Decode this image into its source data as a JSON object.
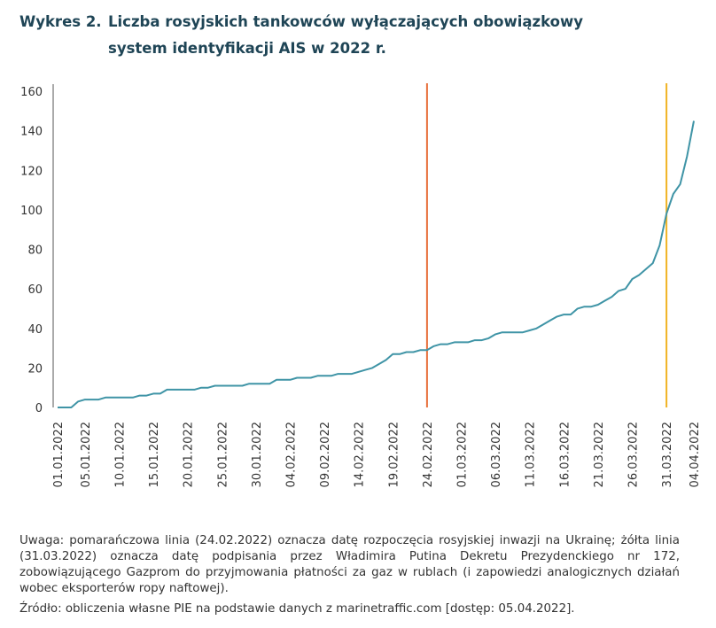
{
  "chart_data": {
    "type": "line",
    "label": "Wykres 2.",
    "title": "Liczba rosyjskich tankowców wyłączających obowiązkowy system identyfikacji AIS w 2022 r.",
    "categories": [
      "01.01.2022",
      null,
      null,
      null,
      "05.01.2022",
      null,
      null,
      null,
      null,
      "10.01.2022",
      null,
      null,
      null,
      null,
      "15.01.2022",
      null,
      null,
      null,
      null,
      "20.01.2022",
      null,
      null,
      null,
      null,
      "25.01.2022",
      null,
      null,
      null,
      null,
      "30.01.2022",
      null,
      null,
      null,
      null,
      "04.02.2022",
      null,
      null,
      null,
      null,
      "09.02.2022",
      null,
      null,
      null,
      null,
      "14.02.2022",
      null,
      null,
      null,
      null,
      "19.02.2022",
      null,
      null,
      null,
      null,
      "24.02.2022",
      null,
      null,
      null,
      null,
      "01.03.2022",
      null,
      null,
      null,
      null,
      "06.03.2022",
      null,
      null,
      null,
      null,
      "11.03.2022",
      null,
      null,
      null,
      null,
      "16.03.2022",
      null,
      null,
      null,
      null,
      "21.03.2022",
      null,
      null,
      null,
      null,
      "26.03.2022",
      null,
      null,
      null,
      null,
      "31.03.2022",
      null,
      null,
      null,
      "04.04.2022"
    ],
    "series": [
      {
        "color": "#3f94a6",
        "values": [
          0,
          0,
          0,
          3,
          4,
          4,
          4,
          5,
          5,
          5,
          5,
          5,
          6,
          6,
          7,
          7,
          9,
          9,
          9,
          9,
          9,
          10,
          10,
          11,
          11,
          11,
          11,
          11,
          12,
          12,
          12,
          12,
          14,
          14,
          14,
          15,
          15,
          15,
          16,
          16,
          16,
          17,
          17,
          17,
          18,
          19,
          20,
          22,
          24,
          27,
          27,
          28,
          28,
          29,
          29,
          31,
          32,
          32,
          33,
          33,
          33,
          34,
          34,
          35,
          37,
          38,
          38,
          38,
          38,
          39,
          40,
          42,
          44,
          46,
          47,
          47,
          50,
          51,
          51,
          52,
          54,
          56,
          59,
          60,
          65,
          67,
          70,
          73,
          82,
          98,
          108,
          113,
          127,
          145
        ]
      }
    ],
    "vlines": [
      {
        "index": 54,
        "color": "#e8713c"
      },
      {
        "index": 89,
        "color": "#f0b323"
      }
    ],
    "ylim": [
      0,
      160
    ],
    "yticks": [
      0,
      20,
      40,
      60,
      80,
      100,
      120,
      140,
      160
    ],
    "note": "Uwaga: pomarańczowa linia (24.02.2022) oznacza datę rozpoczęcia rosyjskiej inwazji na Ukrainę; żółta linia (31.03.2022) oznacza datę podpisania przez Władimira Putina Dekretu Prezydenckiego nr 172, zobowiązującego Gazprom do przyjmowania płatności za gaz w rublach (i zapowiedzi analogicznych działań wobec eksporterów ropy naftowej).",
    "source": "Źródło: obliczenia własne PIE na podstawie danych z marinetraffic.com [dostęp: 05.04.2022]."
  }
}
